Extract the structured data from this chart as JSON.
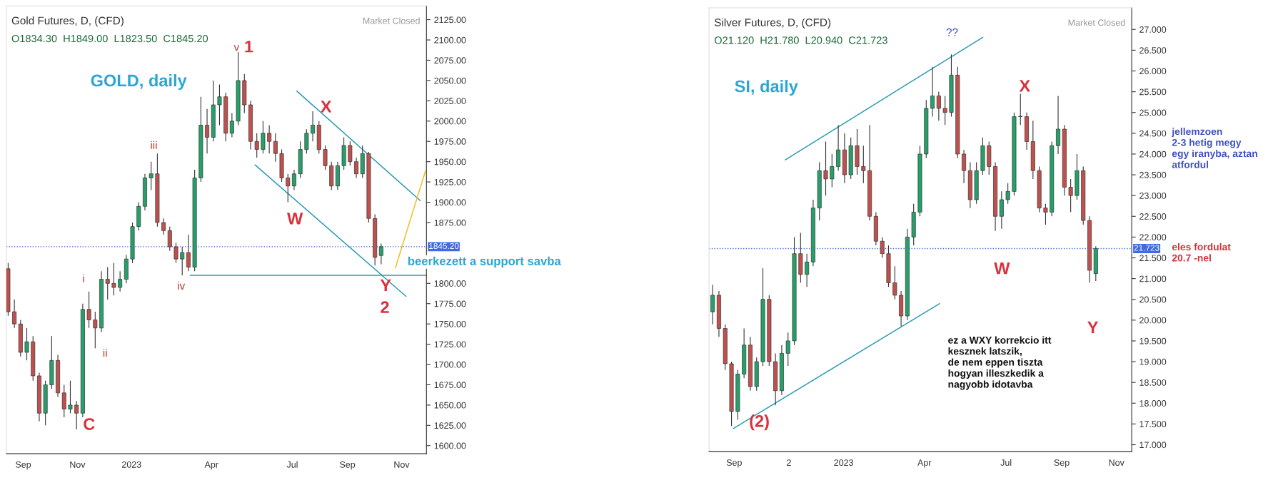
{
  "chart_data": [
    {
      "type": "candlestick",
      "title": "Gold Futures, D, (CFD)",
      "subtitle": "O1834.30  H1849.00  L1823.50  C1845.20",
      "x": [
        "2022-08-15",
        "2022-08-22",
        "2022-08-29",
        "2022-09-05",
        "2022-09-12",
        "2022-09-19",
        "2022-09-26",
        "2022-10-03",
        "2022-10-10",
        "2022-10-17",
        "2022-10-24",
        "2022-10-31",
        "2022-11-07",
        "2022-11-14",
        "2022-11-21",
        "2022-11-28",
        "2022-12-05",
        "2022-12-12",
        "2022-12-19",
        "2022-12-26",
        "2023-01-02",
        "2023-01-09",
        "2023-01-16",
        "2023-01-23",
        "2023-01-30",
        "2023-02-06",
        "2023-02-13",
        "2023-02-20",
        "2023-02-27",
        "2023-03-06",
        "2023-03-13",
        "2023-03-20",
        "2023-03-27",
        "2023-04-03",
        "2023-04-10",
        "2023-04-17",
        "2023-04-24",
        "2023-05-01",
        "2023-05-08",
        "2023-05-15",
        "2023-05-22",
        "2023-05-29",
        "2023-06-05",
        "2023-06-12",
        "2023-06-19",
        "2023-06-26",
        "2023-07-03",
        "2023-07-10",
        "2023-07-17",
        "2023-07-24",
        "2023-07-31",
        "2023-08-07",
        "2023-08-14",
        "2023-08-21",
        "2023-08-28",
        "2023-09-04",
        "2023-09-11",
        "2023-09-18",
        "2023-09-25",
        "2023-10-02",
        "2023-10-09"
      ],
      "ohlc": [
        [
          1818,
          1825,
          1760,
          1765
        ],
        [
          1765,
          1780,
          1745,
          1750
        ],
        [
          1750,
          1755,
          1710,
          1715
        ],
        [
          1715,
          1745,
          1705,
          1728
        ],
        [
          1728,
          1735,
          1680,
          1686
        ],
        [
          1686,
          1690,
          1630,
          1640
        ],
        [
          1640,
          1680,
          1625,
          1675
        ],
        [
          1675,
          1735,
          1670,
          1705
        ],
        [
          1705,
          1712,
          1660,
          1665
        ],
        [
          1665,
          1675,
          1635,
          1645
        ],
        [
          1645,
          1680,
          1640,
          1650
        ],
        [
          1650,
          1655,
          1620,
          1640
        ],
        [
          1640,
          1775,
          1635,
          1768
        ],
        [
          1768,
          1790,
          1745,
          1755
        ],
        [
          1755,
          1765,
          1720,
          1745
        ],
        [
          1745,
          1815,
          1740,
          1805
        ],
        [
          1805,
          1820,
          1780,
          1800
        ],
        [
          1800,
          1825,
          1785,
          1795
        ],
        [
          1795,
          1815,
          1790,
          1805
        ],
        [
          1805,
          1835,
          1800,
          1830
        ],
        [
          1830,
          1875,
          1825,
          1870
        ],
        [
          1870,
          1900,
          1865,
          1895
        ],
        [
          1895,
          1935,
          1890,
          1930
        ],
        [
          1930,
          1950,
          1915,
          1935
        ],
        [
          1935,
          1960,
          1870,
          1875
        ],
        [
          1875,
          1880,
          1860,
          1865
        ],
        [
          1865,
          1870,
          1840,
          1845
        ],
        [
          1845,
          1850,
          1825,
          1830
        ],
        [
          1830,
          1845,
          1810,
          1838
        ],
        [
          1838,
          1860,
          1815,
          1820
        ],
        [
          1820,
          1940,
          1815,
          1930
        ],
        [
          1930,
          2030,
          1925,
          1995
        ],
        [
          1995,
          2015,
          1960,
          1980
        ],
        [
          1980,
          2050,
          1975,
          2020
        ],
        [
          2020,
          2045,
          1995,
          2030
        ],
        [
          2030,
          2035,
          1975,
          1985
        ],
        [
          1985,
          2010,
          1980,
          2000
        ],
        [
          2000,
          2085,
          1995,
          2050
        ],
        [
          2050,
          2058,
          2010,
          2020
        ],
        [
          2020,
          2025,
          1965,
          1975
        ],
        [
          1975,
          1985,
          1955,
          1965
        ],
        [
          1965,
          2000,
          1960,
          1985
        ],
        [
          1985,
          1995,
          1960,
          1975
        ],
        [
          1975,
          1985,
          1950,
          1960
        ],
        [
          1960,
          1965,
          1925,
          1930
        ],
        [
          1930,
          1935,
          1900,
          1920
        ],
        [
          1920,
          1940,
          1915,
          1935
        ],
        [
          1935,
          1975,
          1930,
          1965
        ],
        [
          1965,
          1990,
          1960,
          1985
        ],
        [
          1985,
          2012,
          1975,
          1995
        ],
        [
          1995,
          2000,
          1960,
          1965
        ],
        [
          1965,
          1970,
          1940,
          1945
        ],
        [
          1945,
          1950,
          1915,
          1920
        ],
        [
          1920,
          1950,
          1915,
          1945
        ],
        [
          1945,
          1980,
          1940,
          1970
        ],
        [
          1970,
          1975,
          1945,
          1950
        ],
        [
          1950,
          1955,
          1930,
          1935
        ],
        [
          1935,
          1970,
          1930,
          1960
        ],
        [
          1960,
          1962,
          1875,
          1880
        ],
        [
          1880,
          1885,
          1822,
          1832
        ],
        [
          1834.3,
          1849,
          1823.5,
          1845.2
        ]
      ],
      "series": [
        {
          "type": "line",
          "color": "#2a9bb5",
          "x": [
            "2023-07-06",
            "2023-11-22"
          ],
          "values": [
            2037,
            1902
          ]
        },
        {
          "type": "line",
          "color": "#2a9bb5",
          "x": [
            "2023-05-20",
            "2023-11-06"
          ],
          "values": [
            1946,
            1784
          ]
        },
        {
          "type": "line",
          "color": "#2a9bb5",
          "x": [
            "2023-03-08",
            "2023-11-29"
          ],
          "values": [
            1810,
            1810
          ]
        },
        {
          "type": "line",
          "color": "#f0c020",
          "x": [
            "2023-10-25",
            "2023-11-28"
          ],
          "values": [
            1819,
            1939
          ]
        }
      ],
      "ref_lines": [
        {
          "axis": "y",
          "value": 1845.2,
          "label": "1845.20",
          "color": "#4169e1",
          "line_style": "dotted"
        }
      ],
      "xlim": [
        "2022-08-13",
        "2023-11-29"
      ],
      "xticks": [
        {
          "value": "2022-09-01",
          "label": "Sep"
        },
        {
          "value": "2022-11-01",
          "label": "Nov"
        },
        {
          "value": "2023-01-01",
          "label": "2023"
        },
        {
          "value": "2023-04-01",
          "label": "Apr"
        },
        {
          "value": "2023-07-01",
          "label": "Jul"
        },
        {
          "value": "2023-09-01",
          "label": "Sep"
        },
        {
          "value": "2023-11-01",
          "label": "Nov"
        }
      ],
      "ylim": [
        1590,
        2142
      ],
      "yticks": [
        {
          "value": 1600,
          "label": "1600.00"
        },
        {
          "value": 1625,
          "label": "1625.00"
        },
        {
          "value": 1650,
          "label": "1650.00"
        },
        {
          "value": 1675,
          "label": "1675.00"
        },
        {
          "value": 1700,
          "label": "1700.00"
        },
        {
          "value": 1725,
          "label": "1725.00"
        },
        {
          "value": 1750,
          "label": "1750.00"
        },
        {
          "value": 1775,
          "label": "1775.00"
        },
        {
          "value": 1800,
          "label": "1800.00"
        },
        {
          "value": 1875,
          "label": "1875.00"
        },
        {
          "value": 1900,
          "label": "1900.00"
        },
        {
          "value": 1925,
          "label": "1925.00"
        },
        {
          "value": 1950,
          "label": "1950.00"
        },
        {
          "value": 1975,
          "label": "1975.00"
        },
        {
          "value": 2000,
          "label": "2000.00"
        },
        {
          "value": 2025,
          "label": "2025.00"
        },
        {
          "value": 2050,
          "label": "2050.00"
        },
        {
          "value": 2075,
          "label": "2075.00"
        },
        {
          "value": 2100,
          "label": "2100.00"
        },
        {
          "value": 2125,
          "label": "2125.00"
        }
      ],
      "annotations": [
        "Market Closed",
        "GOLD, daily",
        "beerkezett a support savba",
        "v",
        "1",
        "iii",
        "i",
        "ii",
        "iv",
        "C",
        "W",
        "X",
        "Y",
        "2"
      ]
    },
    {
      "type": "candlestick",
      "title": "Silver Futures, D, (CFD)",
      "subtitle": "O21.120  H21.780  L20.940  C21.723",
      "x": [
        "2022-08-08",
        "2022-08-15",
        "2022-08-22",
        "2022-08-29",
        "2022-09-05",
        "2022-09-12",
        "2022-09-19",
        "2022-09-26",
        "2022-10-03",
        "2022-10-10",
        "2022-10-17",
        "2022-10-24",
        "2022-10-31",
        "2022-11-07",
        "2022-11-14",
        "2022-11-21",
        "2022-11-28",
        "2022-12-05",
        "2022-12-12",
        "2022-12-19",
        "2022-12-26",
        "2023-01-02",
        "2023-01-09",
        "2023-01-16",
        "2023-01-23",
        "2023-01-30",
        "2023-02-06",
        "2023-02-13",
        "2023-02-20",
        "2023-02-27",
        "2023-03-06",
        "2023-03-13",
        "2023-03-20",
        "2023-03-27",
        "2023-04-03",
        "2023-04-10",
        "2023-04-17",
        "2023-04-24",
        "2023-05-01",
        "2023-05-08",
        "2023-05-15",
        "2023-05-22",
        "2023-05-29",
        "2023-06-05",
        "2023-06-12",
        "2023-06-19",
        "2023-06-26",
        "2023-07-03",
        "2023-07-10",
        "2023-07-17",
        "2023-07-24",
        "2023-07-31",
        "2023-08-07",
        "2023-08-14",
        "2023-08-21",
        "2023-08-28",
        "2023-09-04",
        "2023-09-11",
        "2023-09-18",
        "2023-09-25",
        "2023-10-02",
        "2023-10-09"
      ],
      "ohlc": [
        [
          20.2,
          20.85,
          19.9,
          20.6
        ],
        [
          20.6,
          20.7,
          19.6,
          19.8
        ],
        [
          19.8,
          19.9,
          18.8,
          18.95
        ],
        [
          18.95,
          19.0,
          17.45,
          17.8
        ],
        [
          17.8,
          18.8,
          17.6,
          18.7
        ],
        [
          18.7,
          19.8,
          18.6,
          19.4
        ],
        [
          19.4,
          19.6,
          18.3,
          18.4
        ],
        [
          18.4,
          19.1,
          18.3,
          19.0
        ],
        [
          19.0,
          21.25,
          18.9,
          20.5
        ],
        [
          20.5,
          20.6,
          18.9,
          19.0
        ],
        [
          19.0,
          19.2,
          17.95,
          18.3
        ],
        [
          18.3,
          19.4,
          18.2,
          19.2
        ],
        [
          19.2,
          19.7,
          18.9,
          19.5
        ],
        [
          19.5,
          22.0,
          19.4,
          21.6
        ],
        [
          21.6,
          22.1,
          20.9,
          21.1
        ],
        [
          21.1,
          21.6,
          20.8,
          21.4
        ],
        [
          21.4,
          22.9,
          21.3,
          22.7
        ],
        [
          22.7,
          23.8,
          22.4,
          23.6
        ],
        [
          23.6,
          24.3,
          23.0,
          23.4
        ],
        [
          23.4,
          24.0,
          23.2,
          23.7
        ],
        [
          23.7,
          24.7,
          23.6,
          24.1
        ],
        [
          24.1,
          24.5,
          23.3,
          23.5
        ],
        [
          23.5,
          24.4,
          23.4,
          24.2
        ],
        [
          24.2,
          24.6,
          23.5,
          23.7
        ],
        [
          23.7,
          24.2,
          23.3,
          23.6
        ],
        [
          23.6,
          24.7,
          22.4,
          22.5
        ],
        [
          22.5,
          22.6,
          21.8,
          21.9
        ],
        [
          21.9,
          22.0,
          21.5,
          21.6
        ],
        [
          21.6,
          21.8,
          20.8,
          20.9
        ],
        [
          20.9,
          21.3,
          20.5,
          20.6
        ],
        [
          20.6,
          20.7,
          19.85,
          20.1
        ],
        [
          20.1,
          22.2,
          20.0,
          22.0
        ],
        [
          22.0,
          22.8,
          21.8,
          22.6
        ],
        [
          22.6,
          24.2,
          22.5,
          24.0
        ],
        [
          24.0,
          25.3,
          23.9,
          25.1
        ],
        [
          25.1,
          26.1,
          24.9,
          25.4
        ],
        [
          25.4,
          25.5,
          24.8,
          25.1
        ],
        [
          25.1,
          25.4,
          24.7,
          25.0
        ],
        [
          25.0,
          26.4,
          24.9,
          25.9
        ],
        [
          25.9,
          26.1,
          23.9,
          24.0
        ],
        [
          24.0,
          24.1,
          23.3,
          23.6
        ],
        [
          23.6,
          23.8,
          22.7,
          22.9
        ],
        [
          22.9,
          23.8,
          22.8,
          23.6
        ],
        [
          23.6,
          24.4,
          23.5,
          24.2
        ],
        [
          24.2,
          24.3,
          23.5,
          23.7
        ],
        [
          23.7,
          23.8,
          22.15,
          22.5
        ],
        [
          22.5,
          23.1,
          22.2,
          22.9
        ],
        [
          22.9,
          23.3,
          22.8,
          23.1
        ],
        [
          23.1,
          25.0,
          23.0,
          24.9
        ],
        [
          24.9,
          25.45,
          24.7,
          24.9
        ],
        [
          24.9,
          25.0,
          24.1,
          24.3
        ],
        [
          24.3,
          24.8,
          23.4,
          23.6
        ],
        [
          23.6,
          23.7,
          22.6,
          22.7
        ],
        [
          22.7,
          22.8,
          22.3,
          22.6
        ],
        [
          22.6,
          24.3,
          22.5,
          24.2
        ],
        [
          24.2,
          25.4,
          24.0,
          24.6
        ],
        [
          24.6,
          24.7,
          23.0,
          23.2
        ],
        [
          23.2,
          23.4,
          22.6,
          23.0
        ],
        [
          23.0,
          24.0,
          22.9,
          23.6
        ],
        [
          23.6,
          23.7,
          22.3,
          22.4
        ],
        [
          22.4,
          22.5,
          20.9,
          21.2
        ],
        [
          21.12,
          21.78,
          20.94,
          21.723
        ]
      ],
      "series": [
        {
          "type": "line",
          "color": "#2a9bb5",
          "x": [
            "2022-10-28",
            "2023-06-05"
          ],
          "values": [
            23.86,
            26.81
          ]
        },
        {
          "type": "line",
          "color": "#2a9bb5",
          "x": [
            "2022-08-31",
            "2023-04-18"
          ],
          "values": [
            17.39,
            20.4
          ]
        }
      ],
      "ref_lines": [
        {
          "axis": "y",
          "value": 21.723,
          "label": "21.723",
          "color": "#4169e1",
          "line_style": "dotted"
        }
      ],
      "xlim": [
        "2022-08-04",
        "2023-11-18"
      ],
      "xticks": [
        {
          "value": "2022-09-01",
          "label": "Sep"
        },
        {
          "value": "2022-11-01",
          "label": "2"
        },
        {
          "value": "2023-01-01",
          "label": "2023"
        },
        {
          "value": "2023-04-01",
          "label": "Apr"
        },
        {
          "value": "2023-07-01",
          "label": "Jul"
        },
        {
          "value": "2023-09-01",
          "label": "Sep"
        },
        {
          "value": "2023-11-01",
          "label": "Nov"
        }
      ],
      "ylim": [
        16.83,
        27.52
      ],
      "yticks": [
        {
          "value": 17,
          "label": "17.000"
        },
        {
          "value": 17.5,
          "label": "17.500"
        },
        {
          "value": 18,
          "label": "18.000"
        },
        {
          "value": 18.5,
          "label": "18.500"
        },
        {
          "value": 19,
          "label": "19.000"
        },
        {
          "value": 19.5,
          "label": "19.500"
        },
        {
          "value": 20,
          "label": "20.000"
        },
        {
          "value": 20.5,
          "label": "20.500"
        },
        {
          "value": 21,
          "label": "21.000"
        },
        {
          "value": 21.5,
          "label": "21.500"
        },
        {
          "value": 22,
          "label": "22.000"
        },
        {
          "value": 22.5,
          "label": "22.500"
        },
        {
          "value": 23,
          "label": "23.000"
        },
        {
          "value": 23.5,
          "label": "23.500"
        },
        {
          "value": 24,
          "label": "24.000"
        },
        {
          "value": 24.5,
          "label": "24.500"
        },
        {
          "value": 25,
          "label": "25.000"
        },
        {
          "value": 25.5,
          "label": "25.500"
        },
        {
          "value": 26,
          "label": "26.000"
        },
        {
          "value": 26.5,
          "label": "26.500"
        },
        {
          "value": 27,
          "label": "27.000"
        }
      ],
      "annotations": [
        "Market Closed",
        "SI, daily",
        "ez a WXY korrekcio itt\nkesznek latszik,\nde nem eppen tiszta\nhogyan illeszkedik a\nnagyobb idotavba",
        "jellemzoen\n2-3 hetig megy\negy iranyba, aztan\natfordul",
        "eles fordulat\n20.7 -nel",
        "??",
        "X",
        "W",
        "Y",
        "(2)"
      ]
    }
  ]
}
